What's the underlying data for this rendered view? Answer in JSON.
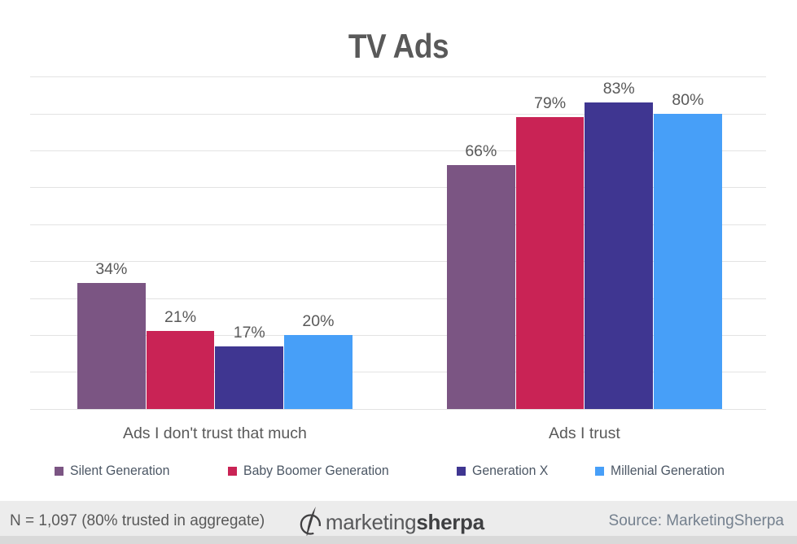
{
  "title": "TV Ads",
  "chart_data": {
    "type": "bar",
    "title": "TV Ads",
    "categories": [
      "Ads I don't trust that much",
      "Ads I trust"
    ],
    "series": [
      {
        "name": "Silent Generation",
        "color": "#7B5583",
        "values": [
          34,
          66
        ]
      },
      {
        "name": "Baby Boomer Generation",
        "color": "#C92355",
        "values": [
          21,
          79
        ]
      },
      {
        "name": "Generation X",
        "color": "#3F3691",
        "values": [
          17,
          83
        ]
      },
      {
        "name": "Millenial Generation",
        "color": "#479FF8",
        "values": [
          20,
          80
        ]
      }
    ],
    "value_suffix": "%",
    "value_labels": true,
    "xlabel": "",
    "ylabel": "",
    "ylim": [
      0,
      90
    ],
    "gridline_interval": 10,
    "grid": true,
    "legend_position": "bottom"
  },
  "footer": {
    "note": "N = 1,097 (80% trusted in aggregate)",
    "source": "Source: MarketingSherpa",
    "logo": {
      "icon": "marketingsherpa-compass-icon",
      "text_light": "marketing",
      "text_bold": "sherpa"
    }
  },
  "colors": {
    "title_text": "#595959",
    "value_label_text": "#595959",
    "category_label_text": "#595959",
    "legend_text": "#4C5765",
    "gridline": "#E3E3E3",
    "footer_bg": "#ECECEC",
    "footer_strip": "#D9D9D9",
    "footer_note_text": "#595959",
    "footer_source_text": "#74808E"
  }
}
